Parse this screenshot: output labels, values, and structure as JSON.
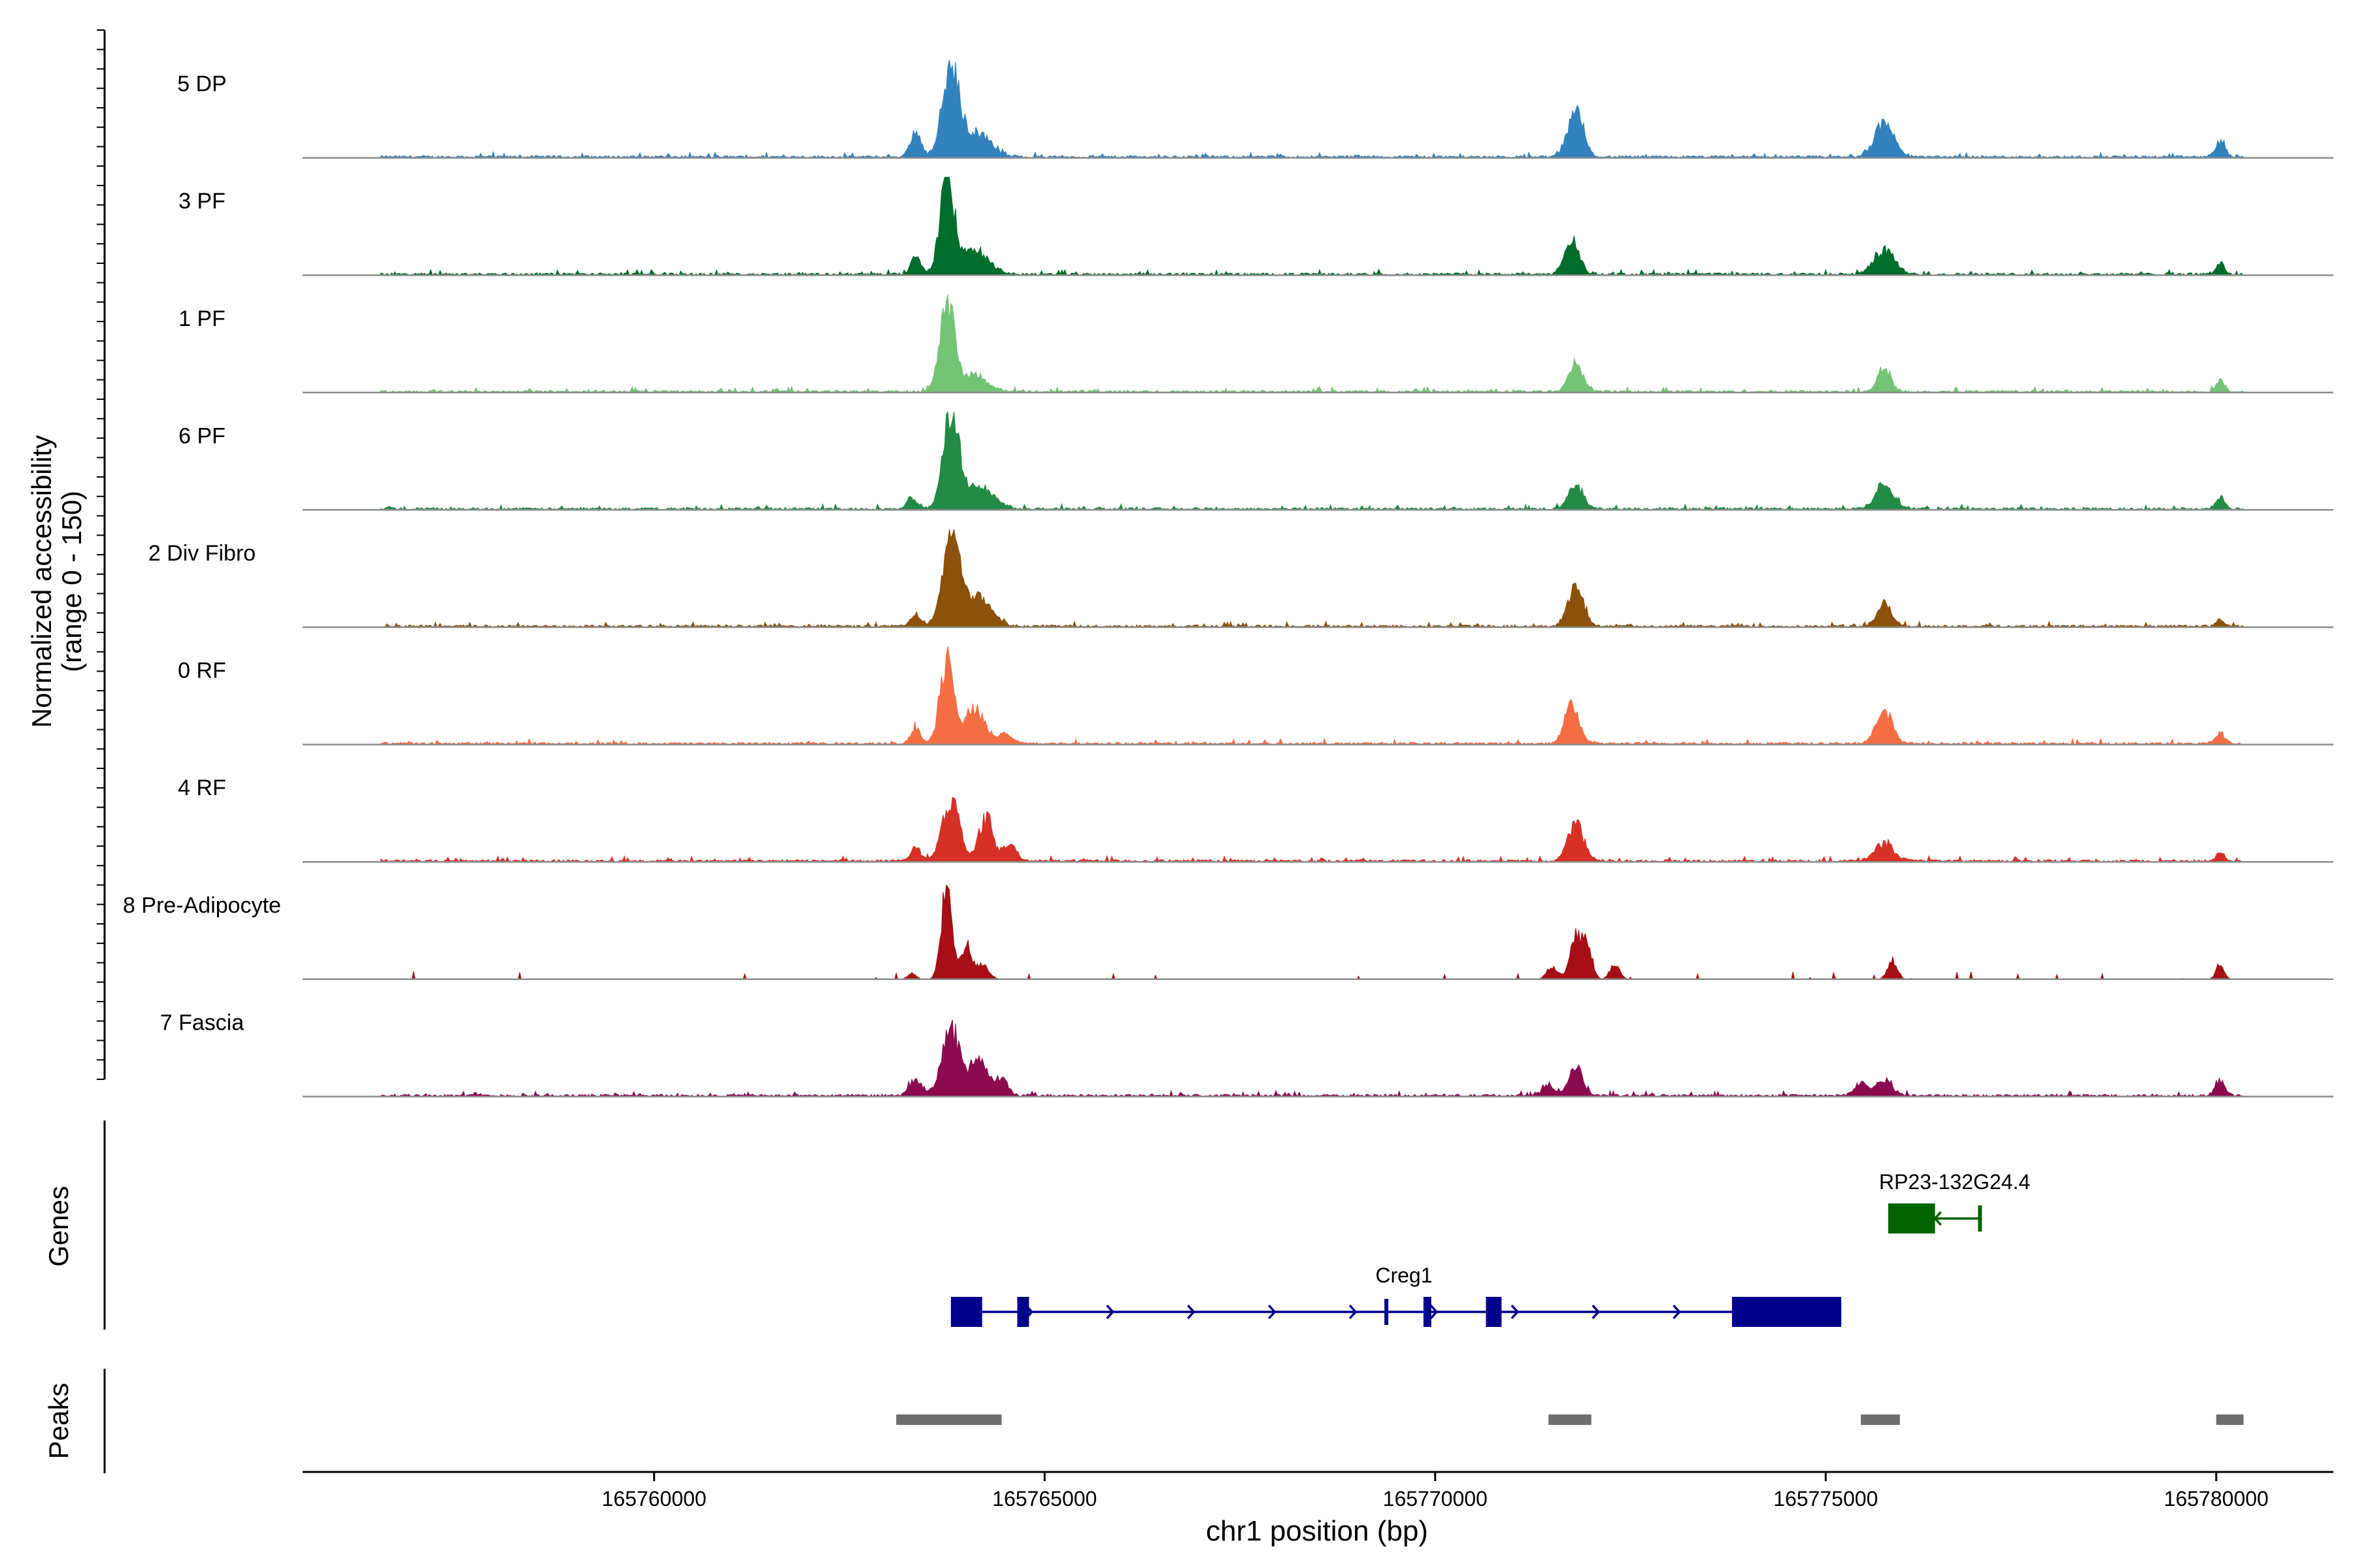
{
  "chart_data": {
    "type": "area",
    "title": "",
    "ylabel_line1": "Normalized accessibility",
    "ylabel_line2": "(range 0 - 150)",
    "xlabel": "chr1 position (bp)",
    "xlim": [
      165755500,
      165781500
    ],
    "ylim": [
      0,
      150
    ],
    "x_ticks": [
      {
        "value": 165760000,
        "label": "165760000"
      },
      {
        "value": 165765000,
        "label": "165765000"
      },
      {
        "value": 165770000,
        "label": "165770000"
      },
      {
        "value": 165775000,
        "label": "165775000"
      },
      {
        "value": 165780000,
        "label": "165780000"
      }
    ],
    "peak_positions": [
      163400,
      163750,
      164050,
      164350,
      171450,
      171800,
      171950,
      175450,
      175750,
      180050
    ],
    "series": [
      {
        "name": "5 DP",
        "color": "#3182bd",
        "peaks": [
          [
            163350,
            40,
            70
          ],
          [
            163800,
            140,
            110
          ],
          [
            164150,
            38,
            160
          ],
          [
            171800,
            70,
            100
          ],
          [
            175750,
            55,
            120
          ],
          [
            180050,
            25,
            60
          ]
        ]
      },
      {
        "name": "3 PF",
        "color": "#006d2c",
        "peaks": [
          [
            163350,
            28,
            60
          ],
          [
            163750,
            150,
            90
          ],
          [
            164100,
            38,
            180
          ],
          [
            171750,
            55,
            90
          ],
          [
            175750,
            40,
            130
          ],
          [
            180050,
            20,
            50
          ]
        ]
      },
      {
        "name": "1 PF",
        "color": "#74c476",
        "peaks": [
          [
            163750,
            148,
            90
          ],
          [
            164100,
            28,
            160
          ],
          [
            171800,
            45,
            90
          ],
          [
            175750,
            40,
            80
          ],
          [
            180050,
            20,
            50
          ]
        ]
      },
      {
        "name": "6 PF",
        "color": "#238b45",
        "peaks": [
          [
            163300,
            18,
            60
          ],
          [
            163800,
            150,
            100
          ],
          [
            164150,
            40,
            180
          ],
          [
            171800,
            40,
            90
          ],
          [
            175750,
            42,
            110
          ],
          [
            180050,
            18,
            60
          ]
        ]
      },
      {
        "name": "2 Div Fibro",
        "color": "#8c510a",
        "peaks": [
          [
            163350,
            20,
            60
          ],
          [
            163800,
            145,
            110
          ],
          [
            164150,
            45,
            170
          ],
          [
            171800,
            60,
            100
          ],
          [
            175750,
            40,
            90
          ],
          [
            180050,
            10,
            50
          ]
        ]
      },
      {
        "name": "0 RF",
        "color": "#f46d43",
        "peaks": [
          [
            163350,
            25,
            60
          ],
          [
            163750,
            130,
            90
          ],
          [
            164100,
            55,
            130
          ],
          [
            164500,
            15,
            90
          ],
          [
            171750,
            65,
            90
          ],
          [
            175750,
            55,
            100
          ],
          [
            180050,
            18,
            60
          ]
        ]
      },
      {
        "name": "4 RF",
        "color": "#d73027",
        "peaks": [
          [
            163350,
            22,
            60
          ],
          [
            163800,
            100,
            110
          ],
          [
            164250,
            70,
            90
          ],
          [
            164550,
            25,
            80
          ],
          [
            171800,
            60,
            100
          ],
          [
            175750,
            28,
            120
          ],
          [
            180050,
            15,
            50
          ]
        ]
      },
      {
        "name": "8 Pre-Adipocyte",
        "color": "#a50f15",
        "peaks": [
          [
            163300,
            10,
            50
          ],
          [
            163750,
            150,
            70
          ],
          [
            164000,
            55,
            60
          ],
          [
            164200,
            25,
            80
          ],
          [
            171500,
            20,
            70
          ],
          [
            171800,
            75,
            70
          ],
          [
            171950,
            55,
            60
          ],
          [
            172300,
            25,
            60
          ],
          [
            175850,
            28,
            60
          ],
          [
            180050,
            25,
            50
          ]
        ]
      },
      {
        "name": "7 Fascia",
        "color": "#8b0a50",
        "peaks": [
          [
            163350,
            25,
            80
          ],
          [
            163800,
            110,
            110
          ],
          [
            164150,
            60,
            110
          ],
          [
            164450,
            25,
            80
          ],
          [
            171450,
            18,
            70
          ],
          [
            171800,
            45,
            90
          ],
          [
            175450,
            20,
            80
          ],
          [
            175750,
            25,
            100
          ],
          [
            180050,
            25,
            60
          ]
        ]
      }
    ],
    "genes_label": "Genes",
    "genes": [
      {
        "name": "RP23-132G24.4",
        "color": "#006400",
        "strand": "-",
        "start": 175800,
        "end": 177000,
        "exons": [
          [
            175800,
            176400
          ],
          [
            176950,
            177000
          ]
        ]
      },
      {
        "name": "Creg1",
        "color": "#00008b",
        "strand": "+",
        "start": 163800,
        "end": 175200,
        "exons": [
          [
            163800,
            164200
          ],
          [
            164650,
            164800
          ],
          [
            169350,
            169400
          ],
          [
            169850,
            169950
          ],
          [
            170650,
            170850
          ],
          [
            173800,
            175200
          ]
        ]
      }
    ],
    "peaks_label": "Peaks",
    "peaks": [
      [
        163100,
        164450
      ],
      [
        171450,
        172000
      ],
      [
        175450,
        175950
      ],
      [
        180000,
        180350
      ]
    ]
  }
}
